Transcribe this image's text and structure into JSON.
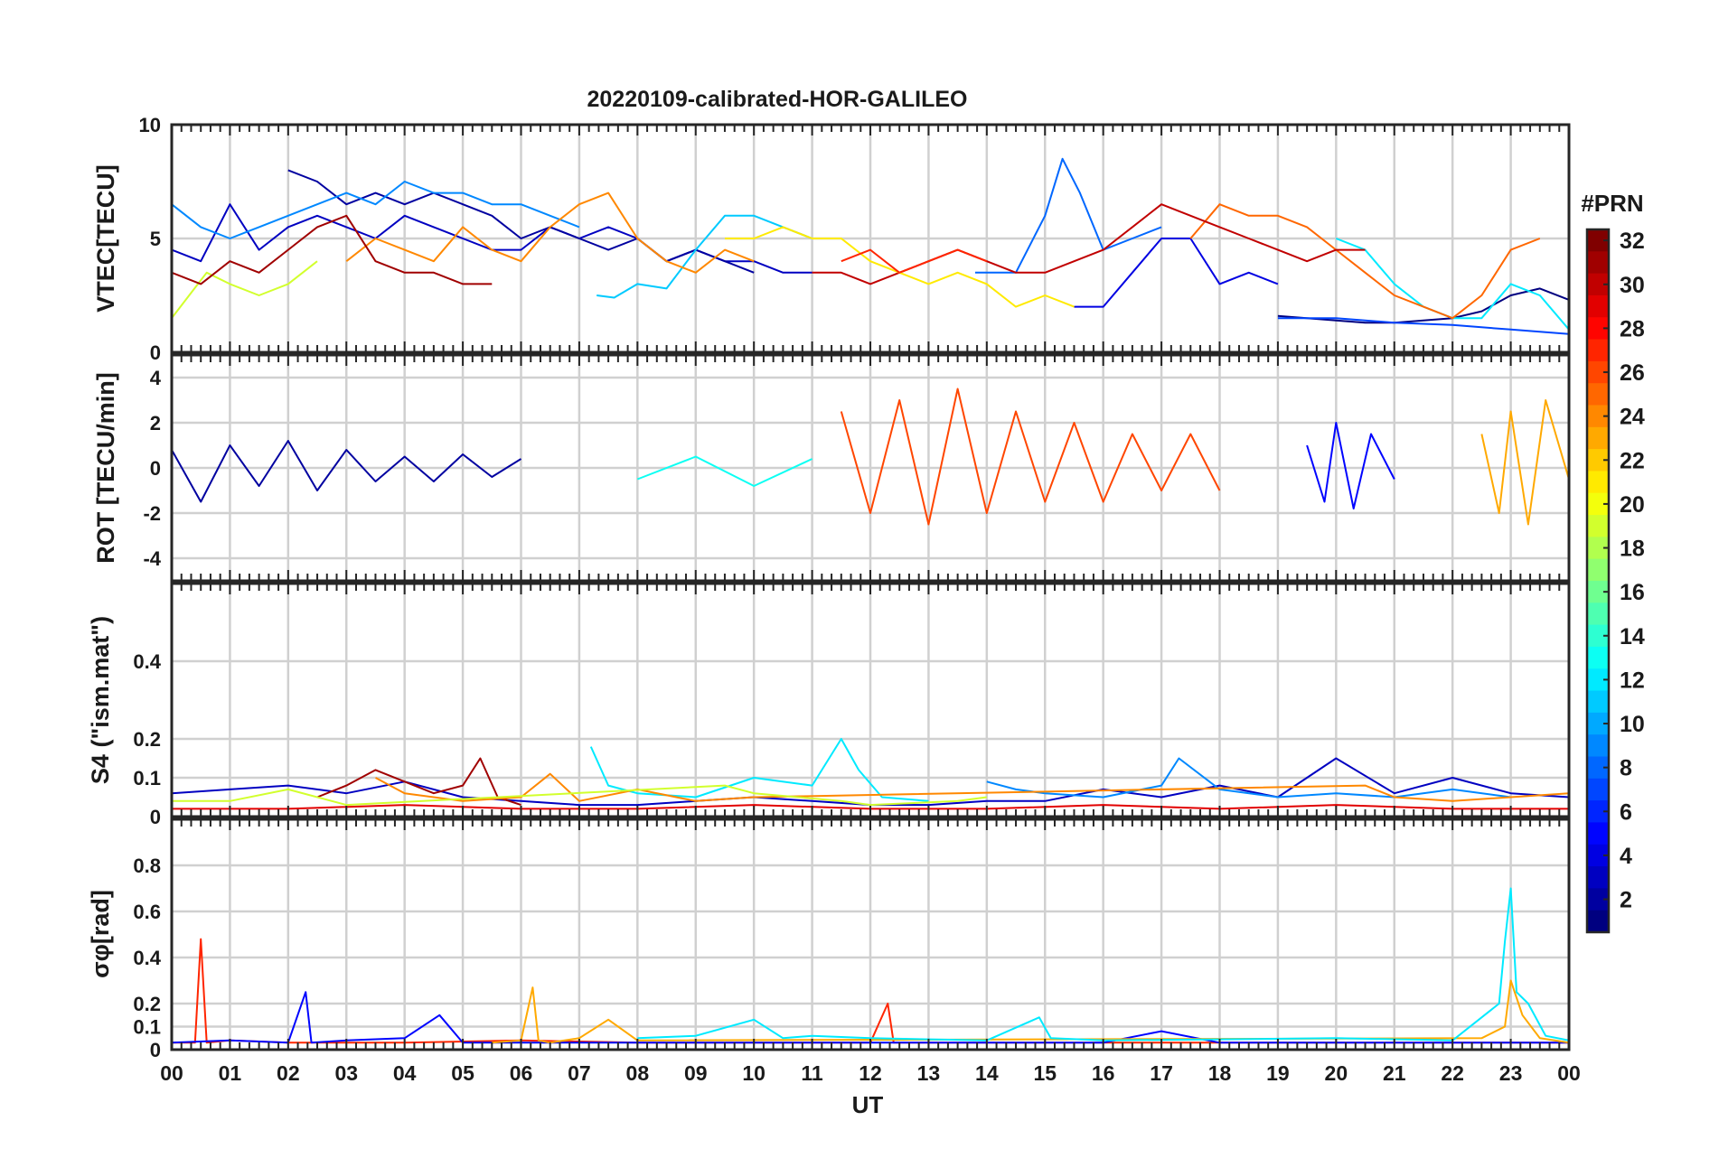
{
  "chart_data": [
    {
      "type": "line",
      "panel": "VTEC",
      "title": "20220109-calibrated-HOR-GALILEO",
      "ylabel": "VTEC[TECU]",
      "ylim": [
        0,
        10
      ],
      "yticks": [
        0,
        5,
        10
      ],
      "xlabel": "",
      "xlim": [
        0,
        24
      ],
      "grid": true,
      "series": [
        {
          "prn": 3,
          "x": [
            0.0,
            0.5,
            1.0,
            1.5,
            2.0,
            2.5,
            3.0,
            3.5,
            4.0,
            4.5,
            5.0,
            5.5,
            6.0,
            6.5,
            7.0,
            7.5,
            8.0,
            8.5,
            9.0,
            9.5,
            10.0,
            10.5,
            11.0
          ],
          "y": [
            4.5,
            4.0,
            6.5,
            4.5,
            5.5,
            6.0,
            5.5,
            5.0,
            6.0,
            5.5,
            5.0,
            4.5,
            4.5,
            5.5,
            5.0,
            5.5,
            5.0,
            4.0,
            4.5,
            4.0,
            4.0,
            3.5,
            3.5
          ]
        },
        {
          "prn": 2,
          "x": [
            2.0,
            2.5,
            3.0,
            3.5,
            4.0,
            4.5,
            5.0,
            5.5,
            6.0,
            6.5,
            7.0,
            7.5,
            8.0,
            8.5,
            9.0,
            9.5,
            10.0
          ],
          "y": [
            8.0,
            7.5,
            6.5,
            7.0,
            6.5,
            7.0,
            6.5,
            6.0,
            5.0,
            5.5,
            5.0,
            4.5,
            5.0,
            4.0,
            4.5,
            4.0,
            3.5
          ]
        },
        {
          "prn": 9,
          "x": [
            0.0,
            0.5,
            1.0,
            1.5,
            2.0,
            2.5,
            3.0,
            3.5,
            4.0,
            4.5,
            5.0,
            5.5,
            6.0,
            6.5,
            7.0
          ],
          "y": [
            6.5,
            5.5,
            5.0,
            5.5,
            6.0,
            6.5,
            7.0,
            6.5,
            7.5,
            7.0,
            7.0,
            6.5,
            6.5,
            6.0,
            5.5
          ]
        },
        {
          "prn": 11,
          "x": [
            7.3,
            7.6,
            8.0,
            8.5,
            9.0,
            9.5,
            10.0,
            10.5,
            11.0
          ],
          "y": [
            2.5,
            2.4,
            3.0,
            2.8,
            4.5,
            6.0,
            6.0,
            5.5,
            5.0
          ]
        },
        {
          "prn": 19,
          "x": [
            0.0,
            0.3,
            0.6,
            1.0,
            1.5,
            2.0,
            2.5
          ],
          "y": [
            1.5,
            2.5,
            3.5,
            3.0,
            2.5,
            3.0,
            4.0
          ]
        },
        {
          "prn": 8,
          "x": [
            13.8,
            14.5,
            15.0,
            15.3,
            15.6,
            16.0,
            16.5,
            17.0
          ],
          "y": [
            3.5,
            3.5,
            6.0,
            8.5,
            7.0,
            4.5,
            5.0,
            5.5
          ]
        },
        {
          "prn": 4,
          "x": [
            15.5,
            16.0,
            16.5,
            17.0,
            17.5,
            18.0,
            18.5,
            19.0
          ],
          "y": [
            2.0,
            2.0,
            3.5,
            5.0,
            5.0,
            3.0,
            3.5,
            3.0
          ]
        },
        {
          "prn": 1,
          "x": [
            19.0,
            19.5,
            20.0,
            20.5,
            21.0,
            21.5,
            22.0,
            22.5,
            23.0,
            23.5,
            24.0
          ],
          "y": [
            1.6,
            1.5,
            1.4,
            1.3,
            1.3,
            1.4,
            1.5,
            1.8,
            2.5,
            2.8,
            2.3
          ]
        },
        {
          "prn": 7,
          "x": [
            19.0,
            20.0,
            21.0,
            22.0,
            23.0,
            24.0
          ],
          "y": [
            1.5,
            1.5,
            1.3,
            1.2,
            1.0,
            0.8
          ]
        },
        {
          "prn": 12,
          "x": [
            20.0,
            20.5,
            21.0,
            21.5,
            22.0,
            22.5,
            23.0,
            23.5,
            24.0
          ],
          "y": [
            5.0,
            4.5,
            3.0,
            2.0,
            1.5,
            1.5,
            3.0,
            2.5,
            1.0
          ]
        },
        {
          "prn": 24,
          "x": [
            3.0,
            3.5,
            4.0,
            4.5,
            5.0,
            5.5,
            6.0,
            6.5,
            7.0,
            7.5,
            8.0,
            8.5,
            9.0,
            9.5,
            10.0
          ],
          "y": [
            4.0,
            5.0,
            4.5,
            4.0,
            5.5,
            4.5,
            4.0,
            5.5,
            6.5,
            7.0,
            5.0,
            4.0,
            3.5,
            4.5,
            4.0
          ]
        },
        {
          "prn": 25,
          "x": [
            17.5,
            18.0,
            18.5,
            19.0,
            19.5,
            20.0,
            20.5,
            21.0,
            21.5,
            22.0,
            22.5,
            23.0,
            23.5
          ],
          "y": [
            5.0,
            6.5,
            6.0,
            6.0,
            5.5,
            4.5,
            3.5,
            2.5,
            2.0,
            1.5,
            2.5,
            4.5,
            5.0
          ]
        },
        {
          "prn": 31,
          "x": [
            0.0,
            0.5,
            1.0,
            1.5,
            2.0,
            2.5,
            3.0,
            3.5,
            4.0,
            4.5,
            5.0,
            5.5
          ],
          "y": [
            3.5,
            3.0,
            4.0,
            3.5,
            4.5,
            5.5,
            6.0,
            4.0,
            3.5,
            3.5,
            3.0,
            3.0
          ]
        },
        {
          "prn": 30,
          "x": [
            11.0,
            11.5,
            12.0,
            12.5,
            13.0,
            13.5,
            14.0,
            14.5,
            15.0,
            15.5,
            16.0,
            16.5,
            17.0,
            17.5,
            18.0,
            18.5,
            19.0,
            19.5,
            20.0,
            20.5
          ],
          "y": [
            3.5,
            3.5,
            3.0,
            3.5,
            4.0,
            4.5,
            4.0,
            3.5,
            3.5,
            4.0,
            4.5,
            5.5,
            6.5,
            6.0,
            5.5,
            5.0,
            4.5,
            4.0,
            4.5,
            4.5
          ]
        },
        {
          "prn": 21,
          "x": [
            9.5,
            10.0,
            10.5,
            11.0,
            11.5,
            12.0,
            12.5,
            13.0,
            13.5,
            14.0,
            14.5,
            15.0,
            15.5
          ],
          "y": [
            5.0,
            5.0,
            5.5,
            5.0,
            5.0,
            4.0,
            3.5,
            3.0,
            3.5,
            3.0,
            2.0,
            2.5,
            2.0
          ]
        },
        {
          "prn": 27,
          "x": [
            11.5,
            12.0,
            12.5,
            13.0,
            13.5,
            14.0
          ],
          "y": [
            4.0,
            4.5,
            3.5,
            4.0,
            4.5,
            4.0
          ]
        }
      ]
    },
    {
      "type": "line",
      "panel": "ROT",
      "ylabel": "ROT [TECU/min]",
      "ylim": [
        -5,
        5
      ],
      "yticks": [
        -4,
        -2,
        0,
        2,
        4
      ],
      "xlim": [
        0,
        24
      ],
      "grid": true,
      "series": [
        {
          "prn": 2,
          "x": [
            0.0,
            0.5,
            1.0,
            1.5,
            2.0,
            2.5,
            3.0,
            3.5,
            4.0,
            4.5,
            5.0,
            5.5,
            6.0
          ],
          "y": [
            0.8,
            -1.5,
            1.0,
            -0.8,
            1.2,
            -1.0,
            0.8,
            -0.6,
            0.5,
            -0.6,
            0.6,
            -0.4,
            0.4
          ]
        },
        {
          "prn": 26,
          "x": [
            11.5,
            12.0,
            12.5,
            13.0,
            13.5,
            14.0,
            14.5,
            15.0,
            15.5,
            16.0,
            16.5,
            17.0,
            17.5,
            18.0
          ],
          "y": [
            2.5,
            -2.0,
            3.0,
            -2.5,
            3.5,
            -2.0,
            2.5,
            -1.5,
            2.0,
            -1.5,
            1.5,
            -1.0,
            1.5,
            -1.0
          ]
        },
        {
          "prn": 23,
          "x": [
            22.5,
            22.8,
            23.0,
            23.3,
            23.6,
            24.0
          ],
          "y": [
            1.5,
            -2.0,
            2.5,
            -2.5,
            3.0,
            -0.5
          ]
        },
        {
          "prn": 5,
          "x": [
            19.5,
            19.8,
            20.0,
            20.3,
            20.6,
            21.0
          ],
          "y": [
            1.0,
            -1.5,
            2.0,
            -1.8,
            1.5,
            -0.5
          ]
        },
        {
          "prn": 13,
          "x": [
            8.0,
            9.0,
            10.0,
            11.0
          ],
          "y": [
            -0.5,
            0.5,
            -0.8,
            0.4
          ]
        }
      ]
    },
    {
      "type": "line",
      "panel": "S4",
      "ylabel": "S4 (\"ism.mat\")",
      "ylim": [
        0,
        0.6
      ],
      "yticks": [
        0,
        0.1,
        0.2,
        0.4
      ],
      "xlim": [
        0,
        24
      ],
      "grid": true,
      "series": [
        {
          "prn": 3,
          "x": [
            0,
            1,
            2,
            3,
            4,
            5,
            6,
            7,
            8,
            9,
            10,
            11,
            12,
            13,
            14,
            15,
            16,
            17,
            18,
            19,
            20,
            21,
            22,
            23,
            24
          ],
          "y": [
            0.06,
            0.07,
            0.08,
            0.06,
            0.09,
            0.05,
            0.04,
            0.03,
            0.03,
            0.04,
            0.05,
            0.04,
            0.03,
            0.03,
            0.04,
            0.04,
            0.07,
            0.05,
            0.08,
            0.05,
            0.15,
            0.06,
            0.1,
            0.06,
            0.05
          ]
        },
        {
          "prn": 12,
          "x": [
            7.2,
            7.5,
            8.0,
            9.0,
            10.0,
            11.0,
            11.5,
            11.8,
            12.2,
            13.0
          ],
          "y": [
            0.18,
            0.08,
            0.06,
            0.05,
            0.1,
            0.08,
            0.2,
            0.12,
            0.05,
            0.04
          ]
        },
        {
          "prn": 9,
          "x": [
            14.0,
            14.5,
            15.0,
            16.0,
            17.0,
            17.3,
            18.0,
            19.0,
            20.0,
            21.0,
            22.0,
            23.0
          ],
          "y": [
            0.09,
            0.07,
            0.06,
            0.05,
            0.08,
            0.15,
            0.07,
            0.05,
            0.06,
            0.05,
            0.07,
            0.05
          ]
        },
        {
          "prn": 31,
          "x": [
            2.5,
            3.0,
            3.5,
            4.0,
            4.5,
            5.0,
            5.3,
            5.6,
            6.0
          ],
          "y": [
            0.05,
            0.08,
            0.12,
            0.09,
            0.06,
            0.08,
            0.15,
            0.05,
            0.03
          ]
        },
        {
          "prn": 24,
          "x": [
            3.5,
            4.0,
            5.0,
            6.0,
            6.5,
            7.0,
            8.0,
            9.0,
            10.0,
            20.5,
            21.0,
            22.0,
            23.0,
            24.0
          ],
          "y": [
            0.1,
            0.06,
            0.04,
            0.05,
            0.11,
            0.04,
            0.07,
            0.04,
            0.05,
            0.08,
            0.05,
            0.04,
            0.05,
            0.06
          ]
        },
        {
          "prn": 19,
          "x": [
            0,
            1,
            2,
            3,
            9.5,
            10.0,
            11.5,
            12.0,
            13.5,
            14.0
          ],
          "y": [
            0.04,
            0.04,
            0.07,
            0.03,
            0.08,
            0.06,
            0.04,
            0.03,
            0.04,
            0.05
          ]
        },
        {
          "prn": 29,
          "x": [
            0,
            2,
            4,
            6,
            8,
            10,
            12,
            14,
            16,
            18,
            20,
            22,
            24
          ],
          "y": [
            0.02,
            0.02,
            0.03,
            0.02,
            0.02,
            0.03,
            0.02,
            0.02,
            0.03,
            0.02,
            0.03,
            0.02,
            0.02
          ]
        }
      ]
    },
    {
      "type": "line",
      "panel": "sigma_phi",
      "ylabel": "σφ[rad]",
      "ylim": [
        0,
        1
      ],
      "yticks": [
        0,
        0.1,
        0.2,
        0.4,
        0.6,
        0.8
      ],
      "xlabel": "UT",
      "xlim": [
        0,
        24
      ],
      "xticks": [
        "00",
        "01",
        "02",
        "03",
        "04",
        "05",
        "06",
        "07",
        "08",
        "09",
        "10",
        "11",
        "12",
        "13",
        "14",
        "15",
        "16",
        "17",
        "18",
        "19",
        "20",
        "21",
        "22",
        "23",
        "00"
      ],
      "grid": true,
      "series": [
        {
          "prn": 27,
          "x": [
            0.0,
            0.4,
            0.5,
            0.6,
            1.0,
            2.0,
            4.0,
            6.0,
            8.0,
            10.0,
            12.0,
            12.3,
            12.4,
            14.0,
            16.0,
            18.0,
            20.0,
            22.0,
            24.0
          ],
          "y": [
            0.03,
            0.03,
            0.48,
            0.03,
            0.04,
            0.03,
            0.03,
            0.04,
            0.03,
            0.03,
            0.03,
            0.2,
            0.03,
            0.03,
            0.03,
            0.03,
            0.03,
            0.03,
            0.03
          ]
        },
        {
          "prn": 5,
          "x": [
            0.0,
            1.0,
            2.0,
            2.3,
            2.4,
            3.0,
            4.0,
            4.6,
            5.0,
            6.0,
            8.0,
            10.0,
            12.0,
            14.0,
            16.0,
            17.0,
            18.0,
            20.0,
            22.0,
            24.0
          ],
          "y": [
            0.03,
            0.04,
            0.03,
            0.25,
            0.03,
            0.04,
            0.05,
            0.15,
            0.03,
            0.03,
            0.03,
            0.03,
            0.03,
            0.03,
            0.03,
            0.08,
            0.03,
            0.03,
            0.03,
            0.03
          ]
        },
        {
          "prn": 23,
          "x": [
            5.5,
            6.0,
            6.2,
            6.3,
            6.5,
            7.0,
            7.5,
            8.0,
            22.5,
            22.9,
            23.0,
            23.2,
            23.5,
            24.0
          ],
          "y": [
            0.03,
            0.04,
            0.27,
            0.04,
            0.03,
            0.05,
            0.13,
            0.04,
            0.05,
            0.1,
            0.3,
            0.15,
            0.05,
            0.03
          ]
        },
        {
          "prn": 12,
          "x": [
            8.0,
            9.0,
            10.0,
            10.5,
            11.0,
            12.0,
            14.0,
            14.9,
            15.1,
            16.0,
            20.0,
            22.0,
            22.8,
            22.9,
            23.0,
            23.1,
            23.3,
            23.6,
            24.0
          ],
          "y": [
            0.05,
            0.06,
            0.13,
            0.05,
            0.06,
            0.05,
            0.04,
            0.14,
            0.05,
            0.04,
            0.05,
            0.04,
            0.2,
            0.47,
            0.7,
            0.25,
            0.2,
            0.06,
            0.04
          ]
        }
      ]
    }
  ],
  "x_tick_labels": [
    "00",
    "01",
    "02",
    "03",
    "04",
    "05",
    "06",
    "07",
    "08",
    "09",
    "10",
    "11",
    "12",
    "13",
    "14",
    "15",
    "16",
    "17",
    "18",
    "19",
    "20",
    "21",
    "22",
    "23",
    "00"
  ],
  "colorbar": {
    "title": "#PRN",
    "min": 1,
    "max": 32,
    "ticks": [
      "2",
      "4",
      "6",
      "8",
      "10",
      "12",
      "14",
      "16",
      "18",
      "20",
      "22",
      "24",
      "26",
      "28",
      "30",
      "32"
    ],
    "colormap": "jet"
  }
}
